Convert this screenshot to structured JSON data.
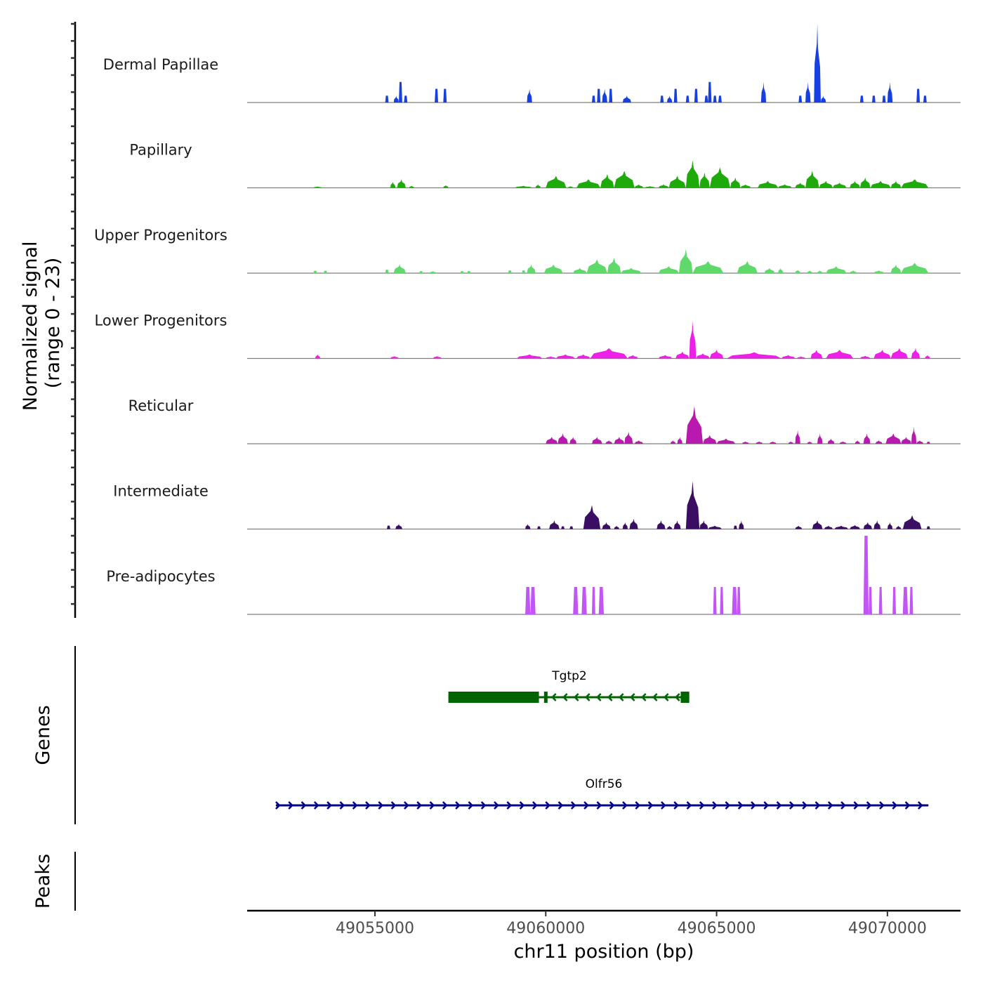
{
  "chart_data": {
    "type": "area",
    "title": "",
    "ylabel": "Normalized signal\n(range 0 - 23)",
    "ylabel_lines": [
      "Normalized signal",
      "(range 0 - 23)"
    ],
    "ylim": [
      0,
      23
    ],
    "xlabel": "chr11 position (bp)",
    "chromosome": "chr11",
    "xlim": [
      49051260,
      49072140
    ],
    "xticks": [
      49055000,
      49060000,
      49065000,
      49070000
    ],
    "xtick_labels": [
      "49055000",
      "49060000",
      "49065000",
      "49070000"
    ],
    "grid": false,
    "legend": "none",
    "tracks": [
      {
        "name": "Dermal Papillae",
        "color": "#1640E0",
        "peaks": [
          [
            49055300,
            49055400,
            2
          ],
          [
            49055550,
            49055700,
            2
          ],
          [
            49055700,
            49055800,
            6
          ],
          [
            49055850,
            49055950,
            2
          ],
          [
            49056750,
            49056850,
            4
          ],
          [
            49057000,
            49057100,
            4
          ],
          [
            49059450,
            49059600,
            4
          ],
          [
            49061350,
            49061450,
            2
          ],
          [
            49061500,
            49061600,
            4
          ],
          [
            49061650,
            49061800,
            4
          ],
          [
            49061850,
            49061950,
            4
          ],
          [
            49062250,
            49062500,
            2
          ],
          [
            49063350,
            49063450,
            2
          ],
          [
            49063550,
            49063700,
            2
          ],
          [
            49063750,
            49063850,
            4
          ],
          [
            49064100,
            49064200,
            2
          ],
          [
            49064350,
            49064450,
            4
          ],
          [
            49064650,
            49064750,
            2
          ],
          [
            49064750,
            49064850,
            6
          ],
          [
            49064900,
            49065000,
            2
          ],
          [
            49065050,
            49065150,
            2
          ],
          [
            49066300,
            49066450,
            6
          ],
          [
            49067400,
            49067500,
            2
          ],
          [
            49067600,
            49067750,
            6
          ],
          [
            49067850,
            49068050,
            23
          ],
          [
            49068050,
            49068200,
            2
          ],
          [
            49069200,
            49069300,
            2
          ],
          [
            49069550,
            49069650,
            2
          ],
          [
            49069850,
            49069950,
            2
          ],
          [
            49070000,
            49070150,
            6
          ],
          [
            49070850,
            49070950,
            4
          ],
          [
            49071050,
            49071150,
            2
          ]
        ]
      },
      {
        "name": "Papillary",
        "color": "#1FAA0C",
        "peaks": [
          [
            49053200,
            49053450,
            0.4
          ],
          [
            49055450,
            49055600,
            1.8
          ],
          [
            49055650,
            49055900,
            2.5
          ],
          [
            49056000,
            49056150,
            0.6
          ],
          [
            49057000,
            49057150,
            0.8
          ],
          [
            49059100,
            49059600,
            0.6
          ],
          [
            49059700,
            49059850,
            1
          ],
          [
            49060000,
            49060600,
            3.5
          ],
          [
            49060650,
            49060800,
            0.5
          ],
          [
            49060900,
            49061600,
            2.5
          ],
          [
            49061600,
            49062000,
            4
          ],
          [
            49062000,
            49062600,
            5
          ],
          [
            49062600,
            49062850,
            1
          ],
          [
            49062900,
            49063200,
            0.5
          ],
          [
            49063300,
            49063600,
            1
          ],
          [
            49063600,
            49064100,
            3.5
          ],
          [
            49064100,
            49064500,
            8
          ],
          [
            49064500,
            49064800,
            4.5
          ],
          [
            49064800,
            49065400,
            6
          ],
          [
            49065400,
            49065700,
            3
          ],
          [
            49065700,
            49066000,
            1
          ],
          [
            49066200,
            49066800,
            2
          ],
          [
            49066800,
            49067200,
            1
          ],
          [
            49067300,
            49067600,
            1.5
          ],
          [
            49067600,
            49068000,
            5
          ],
          [
            49068000,
            49068400,
            2
          ],
          [
            49068400,
            49068800,
            1.5
          ],
          [
            49068900,
            49069200,
            2
          ],
          [
            49069200,
            49069500,
            3
          ],
          [
            49069500,
            49070100,
            2
          ],
          [
            49070100,
            49070400,
            2
          ],
          [
            49070400,
            49071200,
            2.5
          ]
        ]
      },
      {
        "name": "Upper Progenitors",
        "color": "#5ED96A",
        "peaks": [
          [
            49053200,
            49053300,
            0.7
          ],
          [
            49053500,
            49053600,
            0.7
          ],
          [
            49055300,
            49055400,
            1
          ],
          [
            49055550,
            49055900,
            2.5
          ],
          [
            49056300,
            49056400,
            0.6
          ],
          [
            49056600,
            49056800,
            0.6
          ],
          [
            49057500,
            49057600,
            0.6
          ],
          [
            49057700,
            49057800,
            0.6
          ],
          [
            49058900,
            49059000,
            0.8
          ],
          [
            49059300,
            49059400,
            0.8
          ],
          [
            49059450,
            49059700,
            2.5
          ],
          [
            49059950,
            49060500,
            2.5
          ],
          [
            49060800,
            49061200,
            1.5
          ],
          [
            49061200,
            49061800,
            4
          ],
          [
            49061800,
            49062200,
            4.5
          ],
          [
            49062200,
            49062800,
            1.5
          ],
          [
            49063300,
            49063900,
            2
          ],
          [
            49063900,
            49064300,
            7
          ],
          [
            49064300,
            49065200,
            3.5
          ],
          [
            49065600,
            49066200,
            3.5
          ],
          [
            49066400,
            49066700,
            1.5
          ],
          [
            49066800,
            49066950,
            1.5
          ],
          [
            49067300,
            49067450,
            1
          ],
          [
            49067650,
            49067800,
            0.8
          ],
          [
            49067950,
            49068100,
            0.8
          ],
          [
            49068200,
            49068800,
            2
          ],
          [
            49068900,
            49069100,
            0.8
          ],
          [
            49069600,
            49069900,
            0.8
          ],
          [
            49070100,
            49070400,
            2.5
          ],
          [
            49070400,
            49071200,
            3
          ]
        ]
      },
      {
        "name": "Lower Progenitors",
        "color": "#EE1FE6",
        "peaks": [
          [
            49053250,
            49053400,
            1.2
          ],
          [
            49055450,
            49055700,
            0.7
          ],
          [
            49056700,
            49056950,
            0.7
          ],
          [
            49059150,
            49059900,
            1.2
          ],
          [
            49060000,
            49060300,
            0.6
          ],
          [
            49060300,
            49060850,
            1.2
          ],
          [
            49060900,
            49061300,
            1.2
          ],
          [
            49061300,
            49062400,
            3
          ],
          [
            49062400,
            49062700,
            1
          ],
          [
            49063300,
            49063700,
            1
          ],
          [
            49063800,
            49064200,
            2
          ],
          [
            49064200,
            49064400,
            11
          ],
          [
            49064400,
            49064800,
            1.5
          ],
          [
            49064800,
            49065200,
            2.5
          ],
          [
            49065300,
            49066900,
            1.8
          ],
          [
            49066900,
            49067300,
            1
          ],
          [
            49067350,
            49067600,
            0.6
          ],
          [
            49067750,
            49068100,
            2.5
          ],
          [
            49068200,
            49069000,
            2.5
          ],
          [
            49069200,
            49069500,
            0.8
          ],
          [
            49069600,
            49070100,
            2.5
          ],
          [
            49070100,
            49070600,
            3
          ],
          [
            49070700,
            49070950,
            3
          ],
          [
            49071100,
            49071250,
            1
          ]
        ]
      },
      {
        "name": "Reticular",
        "color": "#B819AE",
        "peaks": [
          [
            49060000,
            49060350,
            2
          ],
          [
            49060350,
            49060650,
            3
          ],
          [
            49060700,
            49060900,
            2
          ],
          [
            49061350,
            49061650,
            2
          ],
          [
            49061750,
            49061950,
            1
          ],
          [
            49062000,
            49062300,
            2
          ],
          [
            49062300,
            49062550,
            3.5
          ],
          [
            49062600,
            49062850,
            1
          ],
          [
            49063650,
            49063800,
            1
          ],
          [
            49063850,
            49064000,
            2
          ],
          [
            49064100,
            49064600,
            11
          ],
          [
            49064600,
            49065000,
            2.5
          ],
          [
            49065000,
            49065550,
            1.5
          ],
          [
            49065750,
            49065950,
            0.7
          ],
          [
            49066150,
            49066350,
            0.7
          ],
          [
            49066550,
            49066750,
            0.7
          ],
          [
            49067100,
            49067250,
            0.7
          ],
          [
            49067300,
            49067450,
            4
          ],
          [
            49067650,
            49067800,
            0.7
          ],
          [
            49067950,
            49068100,
            3
          ],
          [
            49068250,
            49068450,
            1.5
          ],
          [
            49068600,
            49068800,
            0.7
          ],
          [
            49069050,
            49069200,
            1
          ],
          [
            49069300,
            49069500,
            3
          ],
          [
            49069650,
            49069850,
            1
          ],
          [
            49069950,
            49070400,
            3
          ],
          [
            49070400,
            49070700,
            2
          ],
          [
            49070700,
            49070850,
            5
          ],
          [
            49070850,
            49071050,
            1
          ],
          [
            49071150,
            49071250,
            0.6
          ]
        ]
      },
      {
        "name": "Intermediate",
        "color": "#3A0E63",
        "peaks": [
          [
            49055350,
            49055450,
            1
          ],
          [
            49055600,
            49055800,
            1.5
          ],
          [
            49059400,
            49059550,
            1.5
          ],
          [
            49059750,
            49059850,
            0.8
          ],
          [
            49060100,
            49060400,
            2.5
          ],
          [
            49060450,
            49060550,
            0.8
          ],
          [
            49060700,
            49060800,
            0.8
          ],
          [
            49061100,
            49061600,
            7
          ],
          [
            49061650,
            49061900,
            2
          ],
          [
            49062000,
            49062150,
            1
          ],
          [
            49062250,
            49062400,
            2
          ],
          [
            49062450,
            49062700,
            3
          ],
          [
            49063250,
            49063500,
            2.5
          ],
          [
            49063550,
            49063700,
            1
          ],
          [
            49063750,
            49063950,
            2.5
          ],
          [
            49064100,
            49064500,
            14
          ],
          [
            49064500,
            49064750,
            2.5
          ],
          [
            49064750,
            49065150,
            1
          ],
          [
            49065500,
            49065600,
            1
          ],
          [
            49065650,
            49065800,
            2.5
          ],
          [
            49067300,
            49067500,
            1
          ],
          [
            49067800,
            49068100,
            2.5
          ],
          [
            49068150,
            49068400,
            1
          ],
          [
            49068450,
            49068850,
            1
          ],
          [
            49068900,
            49069200,
            1.2
          ],
          [
            49069300,
            49069550,
            2
          ],
          [
            49069600,
            49069800,
            2.5
          ],
          [
            49070000,
            49070150,
            2
          ],
          [
            49070250,
            49070400,
            1
          ],
          [
            49070450,
            49071000,
            4
          ],
          [
            49071150,
            49071250,
            0.8
          ]
        ]
      },
      {
        "name": "Pre-adipocytes",
        "color": "#C155F5",
        "peaks": [
          [
            49059400,
            49059550,
            8
          ],
          [
            49059550,
            49059700,
            8
          ],
          [
            49060800,
            49060950,
            8
          ],
          [
            49061050,
            49061200,
            8
          ],
          [
            49061350,
            49061450,
            8
          ],
          [
            49061550,
            49061700,
            8
          ],
          [
            49064900,
            49065000,
            8
          ],
          [
            49065100,
            49065200,
            8
          ],
          [
            49065450,
            49065600,
            8
          ],
          [
            49065600,
            49065700,
            8
          ],
          [
            49069300,
            49069450,
            23
          ],
          [
            49069450,
            49069550,
            8
          ],
          [
            49069750,
            49069850,
            8
          ],
          [
            49070150,
            49070250,
            8
          ],
          [
            49070450,
            49070600,
            8
          ],
          [
            49070650,
            49070750,
            8
          ]
        ]
      }
    ],
    "genes_track": {
      "label": "Genes",
      "genes": [
        {
          "name": "Tgtp2",
          "strand": "-",
          "color": "#006400",
          "start": 49057150,
          "end": 49064200,
          "exons": [
            [
              49057150,
              49059800,
              "thick"
            ],
            [
              49059950,
              49060050,
              "thick"
            ],
            [
              49063950,
              49064200,
              "thick"
            ]
          ]
        },
        {
          "name": "Olfr56",
          "strand": "+",
          "color": "#00008B",
          "start": 49052100,
          "end": 49071200,
          "exons": []
        }
      ]
    },
    "peaks_track": {
      "label": "Peaks",
      "peaks": []
    }
  }
}
